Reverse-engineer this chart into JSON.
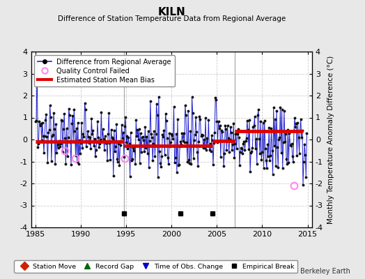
{
  "title": "KILN",
  "subtitle": "Difference of Station Temperature Data from Regional Average",
  "ylabel": "Monthly Temperature Anomaly Difference (°C)",
  "xlim": [
    1984.5,
    2015.5
  ],
  "ylim": [
    -4,
    4
  ],
  "yticks": [
    -4,
    -3,
    -2,
    -1,
    0,
    1,
    2,
    3,
    4
  ],
  "xticks": [
    1985,
    1990,
    1995,
    2000,
    2005,
    2010,
    2015
  ],
  "fig_bg_color": "#e8e8e8",
  "plot_bg_color": "#ffffff",
  "grid_color": "#cccccc",
  "line_color": "#2222cc",
  "dot_color": "#111111",
  "bias_color": "#dd0000",
  "qc_color": "#ff88ee",
  "empirical_break_times": [
    1994.75,
    2001.0,
    2004.5
  ],
  "bias_segments": [
    {
      "start": 1985.0,
      "end": 1994.75,
      "value": -0.08
    },
    {
      "start": 1994.75,
      "end": 2004.5,
      "value": -0.28
    },
    {
      "start": 2004.5,
      "end": 2007.0,
      "value": -0.05
    },
    {
      "start": 2007.0,
      "end": 2014.5,
      "value": 0.38
    }
  ],
  "vertical_lines": [
    1994.75,
    2007.0
  ],
  "vertical_line_color": "#aaaaaa",
  "qc_failed_times": [
    1988.2,
    1989.4,
    1994.8,
    2013.5
  ],
  "qc_failed_values": [
    -0.5,
    -0.85,
    -0.85,
    -2.1
  ],
  "watermark": "Berkeley Earth"
}
